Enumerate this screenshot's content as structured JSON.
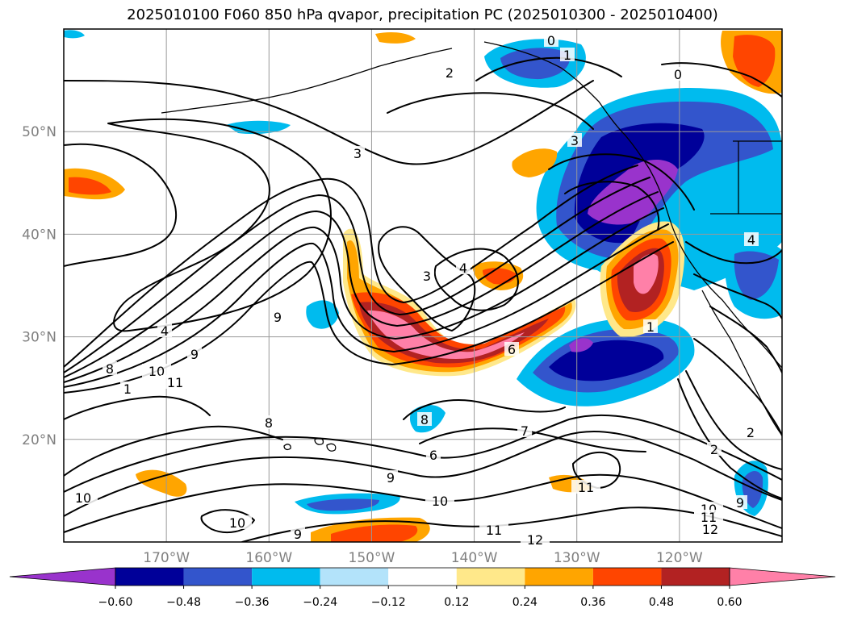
{
  "chart_data": {
    "type": "heatmap",
    "title": "2025010100 F060 850 hPa qvapor, precipitation PC (2025010300 - 2025010400)",
    "map": {
      "lon_range": [
        -180,
        -110
      ],
      "lat_range": [
        10,
        60
      ],
      "longitude_ticks": [
        "170°W",
        "160°W",
        "150°W",
        "140°W",
        "130°W",
        "120°W"
      ],
      "latitude_ticks": [
        "20°N",
        "30°N",
        "40°N",
        "50°N"
      ],
      "gridlines": true
    },
    "shaded_field": "precipitation PC",
    "contour_field": "850 hPa qvapor",
    "colorbar": {
      "orientation": "horizontal",
      "extend": "both",
      "tick_labels": [
        "−0.60",
        "−0.48",
        "−0.36",
        "−0.24",
        "−0.12",
        "0.12",
        "0.24",
        "0.36",
        "0.48",
        "0.60"
      ],
      "levels": [
        -0.6,
        -0.48,
        -0.36,
        -0.24,
        -0.12,
        0.12,
        0.24,
        0.36,
        0.48,
        0.6
      ],
      "colors": [
        "#9933cc",
        "#000099",
        "#3355cc",
        "#00bbee",
        "#b3e3fa",
        "#ffffff",
        "#ffe88a",
        "#ffa500",
        "#ff4500",
        "#b22222",
        "#ff80a8"
      ]
    },
    "contour_labels": [
      "0",
      "1",
      "2",
      "3",
      "4",
      "6",
      "7",
      "8",
      "9",
      "10",
      "11",
      "12"
    ]
  }
}
